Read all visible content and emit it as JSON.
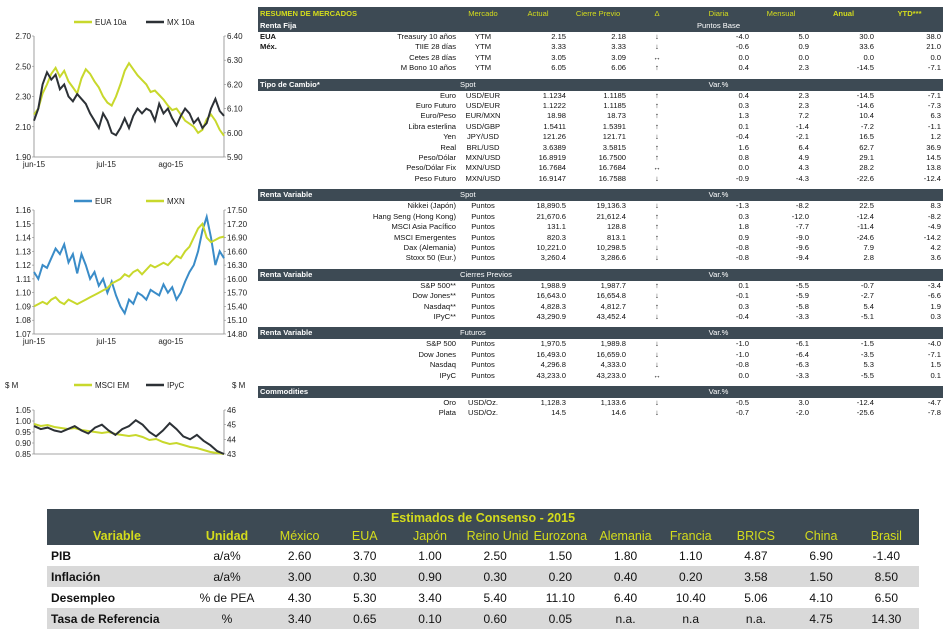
{
  "colors": {
    "header_bg": "#3d4a54",
    "header_text": "#d4dc1c",
    "up": "#1aa01a",
    "down": "#d21c1c",
    "series_yellow": "#c8d82c",
    "series_dark": "#2c3136",
    "series_blue": "#3a8cc8",
    "row_shade": "#d9d9d9"
  },
  "chart_data": [
    {
      "type": "line",
      "legend": [
        "EUA 10a",
        "MX 10a"
      ],
      "left_axis": {
        "ticks": [
          "2.70",
          "2.50",
          "2.30",
          "2.10",
          "1.90"
        ],
        "range": [
          1.9,
          2.7
        ]
      },
      "right_axis": {
        "ticks": [
          "6.40",
          "6.30",
          "6.20",
          "6.10",
          "6.00",
          "5.90"
        ],
        "range": [
          5.9,
          6.4
        ]
      },
      "x_ticks": [
        "jun-15",
        "jul-15",
        "ago-15"
      ],
      "series": [
        {
          "name": "EUA 10a",
          "axis": "left",
          "color": "#c8d82c",
          "values": [
            2.18,
            2.22,
            2.32,
            2.38,
            2.45,
            2.49,
            2.43,
            2.47,
            2.4,
            2.36,
            2.32,
            2.42,
            2.48,
            2.45,
            2.4,
            2.36,
            2.3,
            2.26,
            2.24,
            2.3,
            2.38,
            2.47,
            2.52,
            2.48,
            2.44,
            2.41,
            2.38,
            2.33,
            2.34,
            2.31,
            2.28,
            2.24,
            2.21,
            2.22,
            2.18,
            2.14,
            2.12,
            2.1,
            2.06,
            2.08,
            2.15,
            2.18,
            2.14,
            2.08,
            2.04
          ]
        },
        {
          "name": "MX 10a",
          "axis": "right",
          "color": "#2c3136",
          "values": [
            6.05,
            6.1,
            6.2,
            6.25,
            6.22,
            6.24,
            6.18,
            6.2,
            6.15,
            6.13,
            6.16,
            6.14,
            6.12,
            6.08,
            6.05,
            6.02,
            6.08,
            6.05,
            6.0,
            5.99,
            6.02,
            6.06,
            6.02,
            6.07,
            6.1,
            6.08,
            6.1,
            6.09,
            6.05,
            6.12,
            6.08,
            6.1,
            6.06,
            6.03,
            6.07,
            6.1,
            6.08,
            6.04,
            6.06,
            6.02,
            6.04,
            6.1,
            6.14,
            6.09,
            6.07
          ]
        }
      ]
    },
    {
      "type": "line",
      "legend": [
        "EUR",
        "MXN"
      ],
      "left_axis": {
        "ticks": [
          "1.16",
          "1.15",
          "1.14",
          "1.13",
          "1.12",
          "1.11",
          "1.10",
          "1.09",
          "1.08",
          "1.07"
        ],
        "range": [
          1.07,
          1.16
        ]
      },
      "right_axis": {
        "ticks": [
          "17.50",
          "17.20",
          "16.90",
          "16.60",
          "16.30",
          "16.00",
          "15.70",
          "15.40",
          "15.10",
          "14.80"
        ],
        "range": [
          14.8,
          17.5
        ]
      },
      "x_ticks": [
        "jun-15",
        "jul-15",
        "ago-15"
      ],
      "series": [
        {
          "name": "EUR",
          "axis": "left",
          "color": "#3a8cc8",
          "values": [
            1.115,
            1.11,
            1.12,
            1.118,
            1.125,
            1.132,
            1.128,
            1.135,
            1.122,
            1.128,
            1.114,
            1.128,
            1.12,
            1.11,
            1.115,
            1.105,
            1.11,
            1.1,
            1.108,
            1.098,
            1.09,
            1.085,
            1.095,
            1.092,
            1.1,
            1.098,
            1.095,
            1.102,
            1.1,
            1.098,
            1.106,
            1.1,
            1.104,
            1.095,
            1.1,
            1.108,
            1.115,
            1.12,
            1.13,
            1.145,
            1.155,
            1.14,
            1.12,
            1.13,
            1.125
          ]
        },
        {
          "name": "MXN",
          "axis": "right",
          "color": "#c8d82c",
          "values": [
            15.4,
            15.45,
            15.5,
            15.45,
            15.55,
            15.6,
            15.5,
            15.45,
            15.55,
            15.5,
            15.45,
            15.5,
            15.55,
            15.6,
            15.65,
            15.7,
            15.75,
            15.8,
            15.9,
            15.95,
            16.0,
            16.1,
            16.05,
            16.15,
            16.2,
            16.1,
            16.2,
            16.3,
            16.25,
            16.3,
            16.35,
            16.3,
            16.4,
            16.5,
            16.45,
            16.6,
            16.7,
            16.9,
            17.1,
            17.2,
            16.9,
            16.8,
            16.85,
            16.9,
            16.92
          ]
        }
      ]
    },
    {
      "type": "line",
      "legend": [
        "MSCI EM",
        "IPyC"
      ],
      "left_axis_unit": "$ M",
      "right_axis_unit": "$ M",
      "left_axis": {
        "ticks": [
          "1.05",
          "1.00",
          "0.95",
          "0.90",
          "0.85"
        ],
        "range": [
          0.85,
          1.07
        ]
      },
      "right_axis": {
        "ticks": [
          "46",
          "45",
          "44",
          "43"
        ],
        "range": [
          43,
          46
        ]
      },
      "series": [
        {
          "name": "MSCI EM",
          "axis": "left",
          "color": "#c8d82c",
          "values": [
            1.0,
            0.99,
            0.995,
            0.985,
            0.98,
            0.975,
            0.98,
            0.97,
            0.965,
            0.96,
            0.955,
            0.96,
            0.95,
            0.945,
            0.94,
            0.945,
            0.935,
            0.92,
            0.925,
            0.91,
            0.9,
            0.905,
            0.895,
            0.885,
            0.88,
            0.87,
            0.86,
            0.855,
            0.85
          ]
        },
        {
          "name": "IPyC",
          "axis": "right",
          "color": "#2c3136",
          "values": [
            44.9,
            44.7,
            44.8,
            44.6,
            44.5,
            44.7,
            44.9,
            44.6,
            44.4,
            44.8,
            45.0,
            44.6,
            44.3,
            44.7,
            44.9,
            45.3,
            45.0,
            44.5,
            44.2,
            44.6,
            45.1,
            44.7,
            44.2,
            44.0,
            44.3,
            43.9,
            43.6,
            43.2,
            42.9
          ]
        }
      ]
    }
  ],
  "market": {
    "title": "RESUMEN DE MERCADOS",
    "headers": {
      "mercado": "Mercado",
      "actual": "Actual",
      "cierre": "Cierre Previo",
      "delta": "Δ",
      "diaria": "Diaria",
      "mensual": "Mensual",
      "anual": "Anual",
      "ytd": "YTD***"
    },
    "renta_fija": {
      "label": "Renta Fija",
      "base_label": "Puntos Base",
      "rows": [
        {
          "region": "EUA",
          "name": "Treasury 10 años",
          "unit": "YTM",
          "actual": "2.15",
          "cierre": "2.18",
          "dir": "down",
          "diaria": "-4.0",
          "mensual": "5.0",
          "anual": "30.0",
          "ytd": "38.0"
        },
        {
          "region": "Méx.",
          "name": "TIIE 28 días",
          "unit": "YTM",
          "actual": "3.33",
          "cierre": "3.33",
          "dir": "down",
          "diaria": "-0.6",
          "mensual": "0.9",
          "anual": "33.6",
          "ytd": "21.0"
        },
        {
          "region": "",
          "name": "Cetes 28 días",
          "unit": "YTM",
          "actual": "3.05",
          "cierre": "3.09",
          "dir": "flat",
          "diaria": "0.0",
          "mensual": "0.0",
          "anual": "0.0",
          "ytd": "0.0"
        },
        {
          "region": "",
          "name": "M Bono 10 años",
          "unit": "YTM",
          "actual": "6.05",
          "cierre": "6.06",
          "dir": "up",
          "diaria": "0.4",
          "mensual": "2.3",
          "anual": "-14.5",
          "ytd": "-7.1"
        }
      ]
    },
    "tipo_cambio": {
      "label": "Tipo de Cambio*",
      "sub_label": "Spot",
      "var_label": "Var.%",
      "rows": [
        {
          "name": "Euro",
          "unit": "USD/EUR",
          "actual": "1.1234",
          "cierre": "1.1185",
          "dir": "up",
          "diaria": "0.4",
          "mensual": "2.3",
          "anual": "-14.5",
          "ytd": "-7.1"
        },
        {
          "name": "Euro Futuro",
          "unit": "USD/EUR",
          "actual": "1.1222",
          "cierre": "1.1185",
          "dir": "up",
          "diaria": "0.3",
          "mensual": "2.3",
          "anual": "-14.6",
          "ytd": "-7.3"
        },
        {
          "name": "Euro/Peso",
          "unit": "EUR/MXN",
          "actual": "18.98",
          "cierre": "18.73",
          "dir": "up",
          "diaria": "1.3",
          "mensual": "7.2",
          "anual": "10.4",
          "ytd": "6.3"
        },
        {
          "name": "Libra esterlina",
          "unit": "USD/GBP",
          "actual": "1.5411",
          "cierre": "1.5391",
          "dir": "up",
          "diaria": "0.1",
          "mensual": "-1.4",
          "anual": "-7.2",
          "ytd": "-1.1"
        },
        {
          "name": "Yen",
          "unit": "JPY/USD",
          "actual": "121.26",
          "cierre": "121.71",
          "dir": "down",
          "diaria": "-0.4",
          "mensual": "-2.1",
          "anual": "16.5",
          "ytd": "1.2"
        },
        {
          "name": "Real",
          "unit": "BRL/USD",
          "actual": "3.6389",
          "cierre": "3.5815",
          "dir": "up",
          "diaria": "1.6",
          "mensual": "6.4",
          "anual": "62.7",
          "ytd": "36.9"
        },
        {
          "name": "Peso/Dólar",
          "unit": "MXN/USD",
          "actual": "16.8919",
          "cierre": "16.7500",
          "dir": "up",
          "diaria": "0.8",
          "mensual": "4.9",
          "anual": "29.1",
          "ytd": "14.5"
        },
        {
          "name": "Peso/Dólar Fix",
          "unit": "MXN/USD",
          "actual": "16.7684",
          "cierre": "16.7684",
          "dir": "flat",
          "diaria": "0.0",
          "mensual": "4.3",
          "anual": "28.2",
          "ytd": "13.8"
        },
        {
          "name": "Peso Futuro",
          "unit": "MXN/USD",
          "actual": "16.9147",
          "cierre": "16.7588",
          "dir": "down",
          "diaria": "-0.9",
          "mensual": "-4.3",
          "anual": "-22.6",
          "ytd": "-12.4"
        }
      ]
    },
    "renta_var_spot": {
      "label": "Renta Variable",
      "sub_label": "Spot",
      "var_label": "Var.%",
      "rows": [
        {
          "name": "Nikkei (Japón)",
          "unit": "Puntos",
          "actual": "18,890.5",
          "cierre": "19,136.3",
          "dir": "down",
          "diaria": "-1.3",
          "mensual": "-8.2",
          "anual": "22.5",
          "ytd": "8.3"
        },
        {
          "name": "Hang Seng (Hong Kong)",
          "unit": "Puntos",
          "actual": "21,670.6",
          "cierre": "21,612.4",
          "dir": "up",
          "diaria": "0.3",
          "mensual": "-12.0",
          "anual": "-12.4",
          "ytd": "-8.2"
        },
        {
          "name": "MSCI Asia Pacífico",
          "unit": "Puntos",
          "actual": "131.1",
          "cierre": "128.8",
          "dir": "up",
          "diaria": "1.8",
          "mensual": "-7.7",
          "anual": "-11.4",
          "ytd": "-4.9"
        },
        {
          "name": "MSCI Emergentes",
          "unit": "Puntos",
          "actual": "820.3",
          "cierre": "813.1",
          "dir": "up",
          "diaria": "0.9",
          "mensual": "-9.0",
          "anual": "-24.6",
          "ytd": "-14.2"
        },
        {
          "name": "Dax (Alemania)",
          "unit": "Puntos",
          "actual": "10,221.0",
          "cierre": "10,298.5",
          "dir": "down",
          "diaria": "-0.8",
          "mensual": "-9.6",
          "anual": "7.9",
          "ytd": "4.2"
        },
        {
          "name": "Stoxx 50 (Eur.)",
          "unit": "Puntos",
          "actual": "3,260.4",
          "cierre": "3,286.6",
          "dir": "down",
          "diaria": "-0.8",
          "mensual": "-9.4",
          "anual": "2.8",
          "ytd": "3.6"
        }
      ]
    },
    "renta_var_cierres": {
      "label": "Renta Variable",
      "sub_label": "Cierres Previos",
      "var_label": "Var.%",
      "rows": [
        {
          "name": "S&P 500**",
          "unit": "Puntos",
          "actual": "1,988.9",
          "cierre": "1,987.7",
          "dir": "up",
          "diaria": "0.1",
          "mensual": "-5.5",
          "anual": "-0.7",
          "ytd": "-3.4"
        },
        {
          "name": "Dow Jones**",
          "unit": "Puntos",
          "actual": "16,643.0",
          "cierre": "16,654.8",
          "dir": "down",
          "diaria": "-0.1",
          "mensual": "-5.9",
          "anual": "-2.7",
          "ytd": "-6.6"
        },
        {
          "name": "Nasdaq**",
          "unit": "Puntos",
          "actual": "4,828.3",
          "cierre": "4,812.7",
          "dir": "up",
          "diaria": "0.3",
          "mensual": "-5.8",
          "anual": "5.4",
          "ytd": "1.9"
        },
        {
          "name": "IPyC**",
          "unit": "Puntos",
          "actual": "43,290.9",
          "cierre": "43,452.4",
          "dir": "down",
          "diaria": "-0.4",
          "mensual": "-3.3",
          "anual": "-5.1",
          "ytd": "0.3"
        }
      ]
    },
    "renta_var_futuros": {
      "label": "Renta Variable",
      "sub_label": "Futuros",
      "var_label": "Var.%",
      "rows": [
        {
          "name": "S&P 500",
          "unit": "Puntos",
          "actual": "1,970.5",
          "cierre": "1,989.8",
          "dir": "down",
          "diaria": "-1.0",
          "mensual": "-6.1",
          "anual": "-1.5",
          "ytd": "-4.0"
        },
        {
          "name": "Dow Jones",
          "unit": "Puntos",
          "actual": "16,493.0",
          "cierre": "16,659.0",
          "dir": "down",
          "diaria": "-1.0",
          "mensual": "-6.4",
          "anual": "-3.5",
          "ytd": "-7.1"
        },
        {
          "name": "Nasdaq",
          "unit": "Puntos",
          "actual": "4,296.8",
          "cierre": "4,333.0",
          "dir": "down",
          "diaria": "-0.8",
          "mensual": "-6.3",
          "anual": "5.3",
          "ytd": "1.5"
        },
        {
          "name": "IPyC",
          "unit": "Puntos",
          "actual": "43,233.0",
          "cierre": "43,233.0",
          "dir": "flat",
          "diaria": "0.0",
          "mensual": "-3.3",
          "anual": "-5.5",
          "ytd": "0.1"
        }
      ]
    },
    "commodities": {
      "label": "Commodities",
      "var_label": "Var.%",
      "rows": [
        {
          "name": "Oro",
          "unit": "USD/Oz.",
          "actual": "1,128.3",
          "cierre": "1,133.6",
          "dir": "down",
          "diaria": "-0.5",
          "mensual": "3.0",
          "anual": "-12.4",
          "ytd": "-4.7"
        },
        {
          "name": "Plata",
          "unit": "USD/Oz.",
          "actual": "14.5",
          "cierre": "14.6",
          "dir": "down",
          "diaria": "-0.7",
          "mensual": "-2.0",
          "anual": "-25.6",
          "ytd": "-7.8"
        }
      ]
    }
  },
  "consensus": {
    "title": "Estimados de Consenso - 2015",
    "headers": [
      "Variable",
      "Unidad",
      "México",
      "EUA",
      "Japón",
      "Reino Unido",
      "Eurozona",
      "Alemania",
      "Francia",
      "BRICS",
      "China",
      "Brasil"
    ],
    "rows": [
      {
        "values": [
          "PIB",
          "a/a%",
          "2.60",
          "3.70",
          "1.00",
          "2.50",
          "1.50",
          "1.80",
          "1.10",
          "4.87",
          "6.90",
          "-1.40"
        ]
      },
      {
        "values": [
          "Inflación",
          "a/a%",
          "3.00",
          "0.30",
          "0.90",
          "0.30",
          "0.20",
          "0.40",
          "0.20",
          "3.58",
          "1.50",
          "8.50"
        ]
      },
      {
        "values": [
          "Desempleo",
          "% de PEA",
          "4.30",
          "5.30",
          "3.40",
          "5.40",
          "11.10",
          "6.40",
          "10.40",
          "5.06",
          "4.10",
          "6.50"
        ]
      },
      {
        "values": [
          "Tasa de Referencia",
          "%",
          "3.40",
          "0.65",
          "0.10",
          "0.60",
          "0.05",
          "n.a.",
          "n.a",
          "n.a.",
          "4.75",
          "14.30"
        ]
      }
    ]
  }
}
